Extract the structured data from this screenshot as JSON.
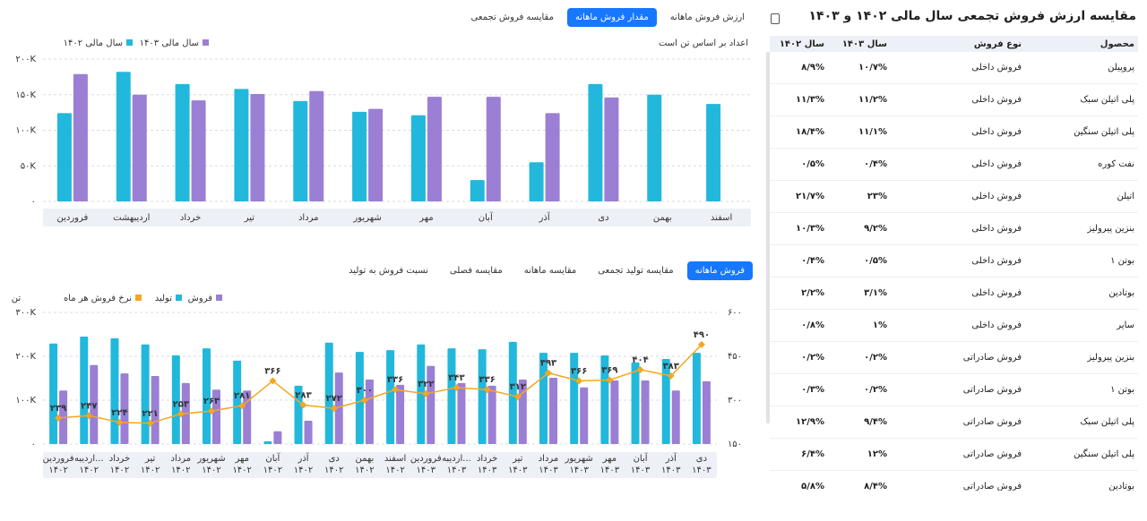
{
  "tabs_top": {
    "items": [
      "ارزش فروش ماهانه",
      "مقدار فروش ماهانه",
      "مقایسه فروش تجمعی"
    ],
    "active": 1
  },
  "tabs_bottom": {
    "items": [
      "فروش ماهانه",
      "مقایسه تولید تجمعی",
      "مقایسه ماهانه",
      "مقایسه فصلی",
      "نسبت فروش به تولید"
    ],
    "active": 0
  },
  "chart_data": [
    {
      "type": "bar",
      "note": "اعداد بر اساس تن است",
      "categories": [
        "فروردین",
        "اردیبهشت",
        "خرداد",
        "تیر",
        "مرداد",
        "شهریور",
        "مهر",
        "آبان",
        "آذر",
        "دی",
        "بهمن",
        "اسفند"
      ],
      "series": [
        {
          "name": "سال مالی ۱۴۰۲",
          "color": "#22b8dc",
          "values": [
            124000,
            182000,
            165000,
            158000,
            141000,
            126000,
            121000,
            30000,
            55000,
            165000,
            150000,
            137000
          ]
        },
        {
          "name": "سال مالی ۱۴۰۳",
          "color": "#9b7fd4",
          "values": [
            179000,
            150000,
            142000,
            151000,
            155000,
            130000,
            147000,
            147000,
            124000,
            146000,
            null,
            null
          ]
        }
      ],
      "ylim": [
        0,
        200000
      ],
      "yticks": [
        {
          "value": 0,
          "label": "۰"
        },
        {
          "value": 50000,
          "label": "۵۰K"
        },
        {
          "value": 100000,
          "label": "۱۰۰K"
        },
        {
          "value": 150000,
          "label": "۱۵۰K"
        },
        {
          "value": 200000,
          "label": "۲۰۰K"
        }
      ],
      "grid": true
    },
    {
      "type": "combo",
      "y_label": "تن",
      "categories": [
        "فروردین ۱۴۰۲",
        "اردیبه... ۱۴۰۲",
        "خرداد ۱۴۰۲",
        "تیر ۱۴۰۲",
        "مرداد ۱۴۰۲",
        "شهریور ۱۴۰۲",
        "مهر ۱۴۰۲",
        "آبان ۱۴۰۲",
        "آذر ۱۴۰۲",
        "دی ۱۴۰۲",
        "بهمن ۱۴۰۲",
        "اسفند ۱۴۰۲",
        "فروردین ۱۴۰۳",
        "اردیبه... ۱۴۰۳",
        "خرداد ۱۴۰۳",
        "تیر ۱۴۰۳",
        "مرداد ۱۴۰۳",
        "شهریور ۱۴۰۳",
        "مهر ۱۴۰۳",
        "آبان ۱۴۰۳",
        "آذر ۱۴۰۳",
        "دی ۱۴۰۳"
      ],
      "series": [
        {
          "name": "فروش",
          "color": "#9b7fd4",
          "values": [
            122000,
            180000,
            161000,
            155000,
            139000,
            124000,
            122000,
            29000,
            53000,
            163000,
            147000,
            135000,
            178000,
            139000,
            133000,
            147000,
            151000,
            129000,
            145000,
            145000,
            122000,
            143000
          ]
        },
        {
          "name": "تولید",
          "color": "#22b8dc",
          "values": [
            229000,
            245000,
            241000,
            227000,
            202000,
            218000,
            190000,
            6000,
            133000,
            231000,
            210000,
            214000,
            227000,
            218000,
            216000,
            233000,
            208000,
            208000,
            202000,
            186000,
            194000,
            208000
          ]
        },
        {
          "name": "نرخ فروش هر ماه",
          "color": "#f5a623",
          "axis": "y2",
          "values": [
            239,
            247,
            224,
            221,
            253,
            263,
            281,
            366,
            283,
            272,
            300,
            336,
            322,
            343,
            336,
            312,
            393,
            366,
            369,
            404,
            383,
            490
          ],
          "value_labels": [
            "۲۳۹",
            "۲۴۷",
            "۲۲۴",
            "۲۲۱",
            "۲۵۳",
            "۲۶۳",
            "۲۸۱",
            "۳۶۶",
            "۲۸۳",
            "۲۷۲",
            "۳۰۰",
            "۳۳۶",
            "۳۲۲",
            "۳۴۳",
            "۳۳۶",
            "۳۱۲",
            "۳۹۳",
            "۳۶۶",
            "۳۶۹",
            "۴۰۴",
            "۳۸۳",
            "۴۹۰"
          ]
        }
      ],
      "ylim": [
        0,
        300000
      ],
      "yticks": [
        {
          "value": 0,
          "label": "۰"
        },
        {
          "value": 100000,
          "label": "۱۰۰K"
        },
        {
          "value": 200000,
          "label": "۲۰۰K"
        },
        {
          "value": 300000,
          "label": "۳۰۰K"
        }
      ],
      "y2lim": [
        150,
        600
      ],
      "y2ticks": [
        {
          "value": 150,
          "label": "۱۵۰"
        },
        {
          "value": 300,
          "label": "۳۰۰"
        },
        {
          "value": 450,
          "label": "۴۵۰"
        },
        {
          "value": 600,
          "label": "۶۰۰"
        }
      ],
      "grid": true
    }
  ],
  "table": {
    "title": "مقایسه ارزش فروش تجمعی سال مالی ۱۴۰۲ و ۱۴۰۳",
    "columns": [
      "محصول",
      "نوع فروش",
      "سال ۱۴۰۳",
      "سال ۱۴۰۲"
    ],
    "rows": [
      [
        "پروپیلن",
        "فروش داخلی",
        "۱۰/۷%",
        "۸/۹%"
      ],
      [
        "پلی اتیلن سبک",
        "فروش داخلی",
        "۱۱/۲%",
        "۱۱/۳%"
      ],
      [
        "پلی اتیلن سنگین",
        "فروش داخلی",
        "۱۱/۱%",
        "۱۸/۴%"
      ],
      [
        "نفت کوره",
        "فروش داخلی",
        "۰/۴%",
        "۰/۵%"
      ],
      [
        "اتیلن",
        "فروش داخلی",
        "۲۳%",
        "۲۱/۷%"
      ],
      [
        "بنزین پیرولیز",
        "فروش داخلی",
        "۹/۲%",
        "۱۰/۳%"
      ],
      [
        "بوتن ۱",
        "فروش داخلی",
        "۰/۵%",
        "۰/۴%"
      ],
      [
        "بوتادین",
        "فروش داخلی",
        "۳/۱%",
        "۲/۲%"
      ],
      [
        "سایر",
        "فروش داخلی",
        "۱%",
        "۰/۸%"
      ],
      [
        "بنزین پیرولیز",
        "فروش صادراتی",
        "۰/۲%",
        "۰/۲%"
      ],
      [
        "بوتن ۱",
        "فروش صادراتی",
        "۰/۲%",
        "۰/۳%"
      ],
      [
        "پلی اتیلن سبک",
        "فروش صادراتی",
        "۹/۴%",
        "۱۲/۹%"
      ],
      [
        "پلی اتیلن سنگین",
        "فروش صادراتی",
        "۱۲%",
        "۶/۴%"
      ],
      [
        "بوتادین",
        "فروش صادراتی",
        "۸/۴%",
        "۵/۸%"
      ]
    ]
  }
}
